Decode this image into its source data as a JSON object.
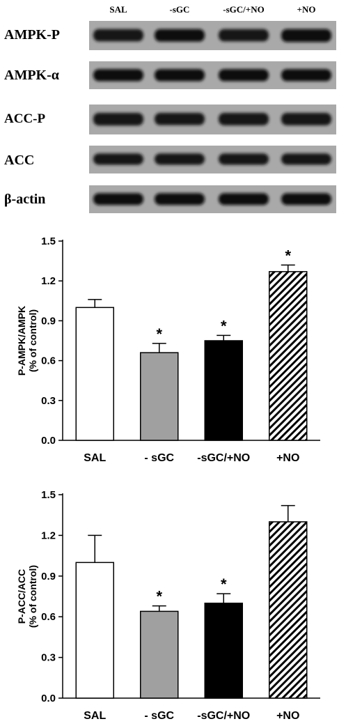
{
  "blot": {
    "lanes": [
      "SAL",
      "-sGC",
      "-sGC/+NO",
      "+NO"
    ],
    "rows": [
      {
        "label": "AMPK-P",
        "intensity": [
          0.85,
          0.9,
          0.85,
          1.0
        ]
      },
      {
        "label": "AMPK-α",
        "intensity": [
          0.95,
          0.95,
          0.95,
          0.95
        ]
      },
      {
        "label": "ACC-P",
        "intensity": [
          0.85,
          0.75,
          0.8,
          0.8
        ]
      },
      {
        "label": "ACC",
        "intensity": [
          0.75,
          0.75,
          0.75,
          0.75
        ]
      },
      {
        "label": "β-actin",
        "intensity": [
          0.9,
          0.9,
          0.9,
          0.9
        ]
      }
    ]
  },
  "chart_data": [
    {
      "type": "bar",
      "categories": [
        "SAL",
        "- sGC",
        "-sGC/+NO",
        "+NO"
      ],
      "ylabel": "P-AMPK/AMPK",
      "ylabel2": "(% of control)",
      "ylim": [
        0.0,
        1.5
      ],
      "yticks": [
        "0.0",
        "0.3",
        "0.6",
        "0.9",
        "1.2",
        "1.5"
      ],
      "values": [
        1.0,
        0.66,
        0.75,
        1.27
      ],
      "errors": [
        0.06,
        0.07,
        0.04,
        0.05
      ],
      "significant": [
        false,
        true,
        true,
        true
      ],
      "fills": [
        "white",
        "gray",
        "black",
        "hatched"
      ],
      "colors": {
        "gray": "#a0a0a0",
        "black": "#000000",
        "white": "#ffffff"
      },
      "star": "*"
    },
    {
      "type": "bar",
      "categories": [
        "SAL",
        "- sGC",
        "-sGC/+NO",
        "+NO"
      ],
      "ylabel": "P-ACC/ACC",
      "ylabel2": "(% of control)",
      "ylim": [
        0.0,
        1.5
      ],
      "yticks": [
        "0.0",
        "0.3",
        "0.6",
        "0.9",
        "1.2",
        "1.5"
      ],
      "values": [
        1.0,
        0.64,
        0.7,
        1.3
      ],
      "errors": [
        0.2,
        0.04,
        0.07,
        0.12
      ],
      "significant": [
        false,
        true,
        true,
        false
      ],
      "fills": [
        "white",
        "gray",
        "black",
        "hatched"
      ],
      "colors": {
        "gray": "#a0a0a0",
        "black": "#000000",
        "white": "#ffffff"
      },
      "star": "*"
    }
  ]
}
